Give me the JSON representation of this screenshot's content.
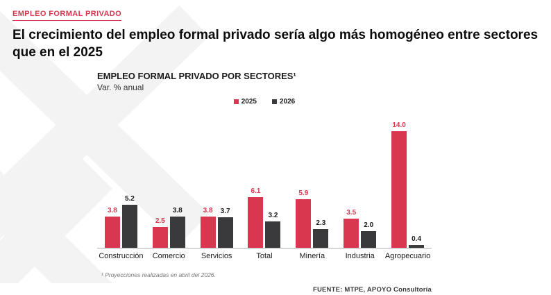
{
  "header": {
    "kicker": "EMPLEO FORMAL PRIVADO",
    "title": "El crecimiento del empleo formal privado sería algo más homogéneo entre sectores que en el 2025"
  },
  "chart": {
    "title": "EMPLEO FORMAL PRIVADO POR SECTORES¹",
    "subtitle": "Var. % anual"
  },
  "chart_data": {
    "type": "bar",
    "categories": [
      "Construcción",
      "Comercio",
      "Servicios",
      "Total",
      "Minería",
      "Industria",
      "Agropecuario"
    ],
    "series": [
      {
        "name": "2025",
        "color": "#d8374f",
        "label_color": "#d8374f",
        "values": [
          3.8,
          2.5,
          3.8,
          6.1,
          5.9,
          3.5,
          14.0
        ]
      },
      {
        "name": "2026",
        "color": "#3a3a3c",
        "label_color": "#1a1a1a",
        "values": [
          5.2,
          3.8,
          3.7,
          3.2,
          2.3,
          2.0,
          0.4
        ]
      }
    ],
    "ylim": [
      0,
      15
    ],
    "legend_position": "top",
    "grid": false,
    "title": "EMPLEO FORMAL PRIVADO POR SECTORES¹",
    "ylabel": "Var. % anual"
  },
  "footnote": "¹ Proyecciones realizadas en abril del 2026.",
  "source": "FUENTE: MTPE, APOYO Consultoría",
  "colors": {
    "accent": "#d8374f",
    "dark": "#3a3a3c",
    "watermark": "#f3f3f3"
  }
}
